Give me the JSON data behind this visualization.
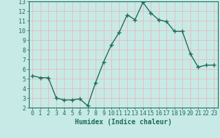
{
  "x": [
    0,
    1,
    2,
    3,
    4,
    5,
    6,
    7,
    8,
    9,
    10,
    11,
    12,
    13,
    14,
    15,
    16,
    17,
    18,
    19,
    20,
    21,
    22,
    23
  ],
  "y": [
    5.3,
    5.1,
    5.1,
    3.0,
    2.8,
    2.8,
    2.9,
    2.2,
    4.6,
    6.7,
    8.5,
    9.8,
    11.6,
    11.1,
    12.9,
    11.8,
    11.1,
    10.9,
    9.9,
    9.9,
    7.6,
    6.2,
    6.4,
    6.4
  ],
  "line_color": "#1a6b5a",
  "marker": "+",
  "marker_size": 4,
  "marker_lw": 1.0,
  "xlabel": "Humidex (Indice chaleur)",
  "xlim": [
    -0.5,
    23.5
  ],
  "ylim": [
    2,
    13
  ],
  "yticks": [
    2,
    3,
    4,
    5,
    6,
    7,
    8,
    9,
    10,
    11,
    12,
    13
  ],
  "xticks": [
    0,
    1,
    2,
    3,
    4,
    5,
    6,
    7,
    8,
    9,
    10,
    11,
    12,
    13,
    14,
    15,
    16,
    17,
    18,
    19,
    20,
    21,
    22,
    23
  ],
  "bg_color": "#c8eae6",
  "grid_color": "#e8b8b8",
  "font_color": "#1a6b5a",
  "xlabel_fontsize": 7,
  "tick_fontsize": 6,
  "line_width": 1.0
}
